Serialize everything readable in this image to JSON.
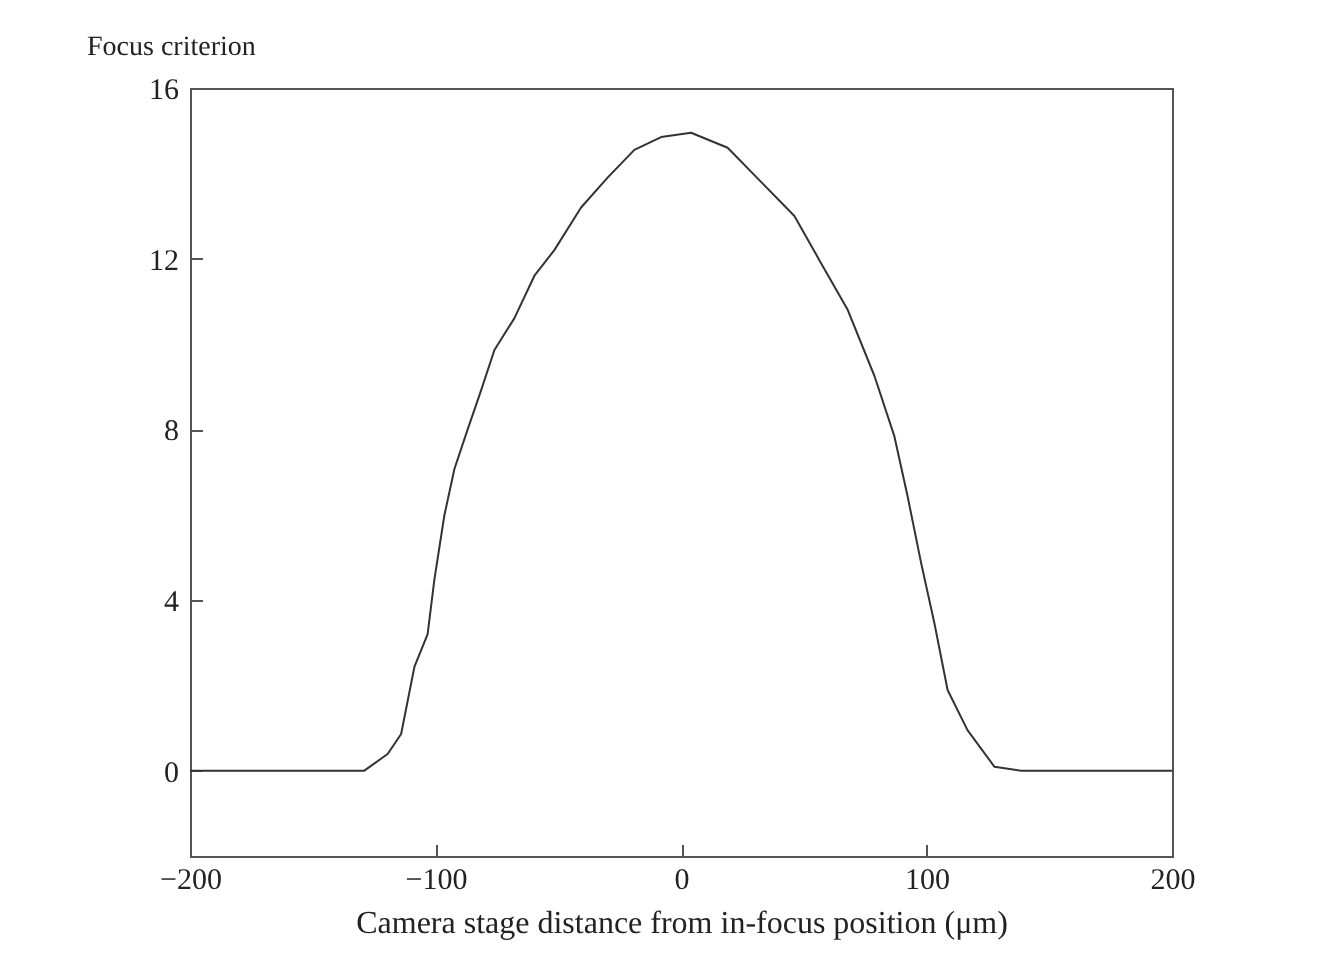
{
  "chart_data": {
    "type": "line",
    "xlabel": "Camera stage distance from in-focus position (μm)",
    "ylabel": "Focus criterion",
    "x": [
      -200,
      -129,
      -119.5,
      -114,
      -108.6,
      -103.2,
      -100.5,
      -96.4,
      -92.3,
      -86.9,
      -81.5,
      -76,
      -67.9,
      -59.7,
      -51.6,
      -40.7,
      -29.9,
      -19,
      -8.1,
      4.1,
      19,
      32.6,
      46.2,
      57,
      67.9,
      78.8,
      86.9,
      92.3,
      97.8,
      103.2,
      108.6,
      116.7,
      127.7,
      138.5,
      200
    ],
    "series": [
      {
        "color": "#333333",
        "values": [
          0,
          0,
          0.39,
          0.86,
          2.43,
          3.2,
          4.46,
          5.98,
          7.07,
          8.0,
          8.9,
          9.86,
          10.6,
          11.6,
          12.2,
          13.2,
          13.9,
          14.55,
          14.85,
          14.95,
          14.6,
          13.8,
          13.0,
          11.9,
          10.8,
          9.25,
          7.84,
          6.43,
          4.87,
          3.46,
          1.89,
          0.95,
          0.09,
          0,
          0
        ]
      }
    ],
    "xlim": [
      -200,
      200
    ],
    "xticks": [
      -200,
      -100,
      0,
      100,
      200
    ],
    "ylim": [
      -2,
      16
    ],
    "yticks": [
      0,
      4,
      8,
      12,
      16
    ],
    "grid": false,
    "marker": "none",
    "line_style": "solid"
  }
}
